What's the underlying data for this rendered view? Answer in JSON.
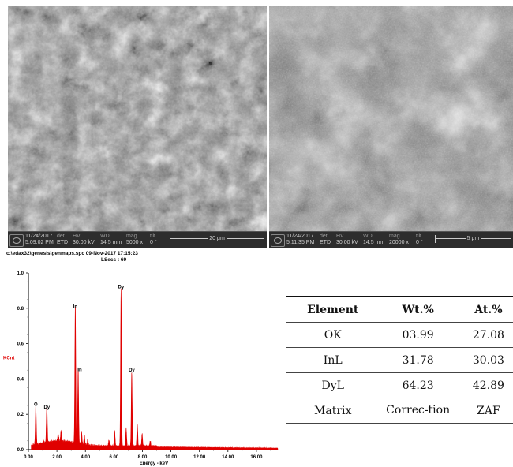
{
  "sem_left": {
    "date": "11/24/2017",
    "time": "5:09:02 PM",
    "det": "ETD",
    "hv": "30.00 kV",
    "wd": "14.5 mm",
    "mag": "5000 x",
    "tilt": "0 °",
    "scale": "20 μm",
    "labels": {
      "det": "det",
      "hv": "HV",
      "wd": "WD",
      "mag": "mag",
      "tilt": "tilt"
    }
  },
  "sem_right": {
    "date": "11/24/2017",
    "time": "5:11:35 PM",
    "det": "ETD",
    "hv": "30.00 kV",
    "wd": "14.5 mm",
    "mag": "20000 x",
    "tilt": "0 °",
    "scale": "5 μm",
    "labels": {
      "det": "det",
      "hv": "HV",
      "wd": "WD",
      "mag": "mag",
      "tilt": "tilt"
    }
  },
  "eds_header": {
    "line1": "c:\\edax32\\genesis\\genmaps.spc 09-Nov-2017 17:15:23",
    "line2": "LSecs : 69"
  },
  "chart_data": {
    "type": "line",
    "ylabel": "KCnt",
    "xlabel": "Energy - keV",
    "xlim": [
      0,
      17.5
    ],
    "ylim": [
      0,
      1.0
    ],
    "xticks": [
      "0.00",
      "2.00",
      "4.00",
      "6.00",
      "8.00",
      "10.00",
      "12.00",
      "14.00",
      "16.00"
    ],
    "yticks": [
      "0.0",
      "0.2",
      "0.4",
      "0.6",
      "0.8",
      "1.0"
    ],
    "series_color": "#e00000",
    "peaks": [
      {
        "label": "O",
        "x": 0.52,
        "y": 0.22
      },
      {
        "label": "Dy",
        "x": 1.29,
        "y": 0.21
      },
      {
        "label": "In",
        "x": 3.29,
        "y": 0.78
      },
      {
        "label": "In",
        "x": 3.49,
        "y": 0.43
      },
      {
        "label": "Dy",
        "x": 6.5,
        "y": 0.89
      },
      {
        "label": "Dy",
        "x": 7.25,
        "y": 0.42
      }
    ]
  },
  "table": {
    "headers": [
      "Element",
      "Wt.%",
      "At.%"
    ],
    "rows": [
      [
        "OK",
        "03.99",
        "27.08"
      ],
      [
        "InL",
        "31.78",
        "30.03"
      ],
      [
        "DyL",
        "64.23",
        "42.89"
      ],
      [
        "Matrix",
        "Correc-tion",
        "ZAF"
      ]
    ]
  }
}
